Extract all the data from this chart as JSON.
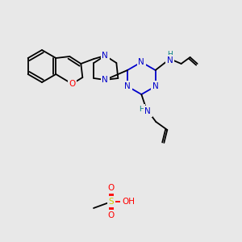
{
  "bg": "#e8e8e8",
  "fig_size": [
    3.0,
    3.0
  ],
  "dpi": 100,
  "C": "#000000",
  "N": "#0000cc",
  "O": "#ff0000",
  "S": "#cccc00",
  "H": "#008080",
  "lw": 1.3,
  "fs": 7.5
}
